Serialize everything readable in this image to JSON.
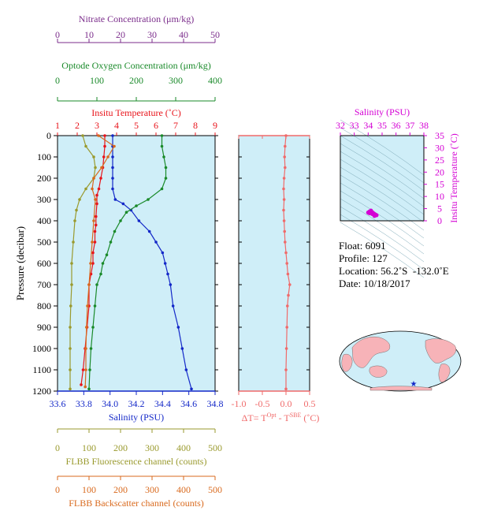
{
  "colors": {
    "nitrate": "#7b2d8b",
    "oxygen": "#1a8a2a",
    "temperature": "#e8141b",
    "salinity": "#1428c8",
    "fluorescence": "#9a9a2e",
    "backscatter": "#d96a1e",
    "delta": "#f06a6a",
    "ts_axis": "#d400d4",
    "plot_bg": "#cfeef8"
  },
  "chart_data": [
    {
      "type": "line",
      "panel": "main-profile",
      "ylabel": "Pressure (decibar)",
      "ylim": [
        1200,
        0
      ],
      "yticks": [
        0,
        100,
        200,
        300,
        400,
        500,
        600,
        700,
        800,
        900,
        1000,
        1100,
        1200
      ],
      "axes": {
        "nitrate": {
          "label": "Nitrate Concentration (μm/kg)",
          "lim": [
            0,
            50
          ],
          "ticks": [
            0,
            10,
            20,
            30,
            40,
            50
          ]
        },
        "oxygen": {
          "label": "Optode Oxygen Concentration (μm/kg)",
          "lim": [
            0,
            400
          ],
          "ticks": [
            0,
            100,
            200,
            300,
            400
          ]
        },
        "temperature": {
          "label": "Insitu Temperature (˚C)",
          "lim": [
            1,
            9
          ],
          "ticks": [
            1,
            2,
            3,
            4,
            5,
            6,
            7,
            8,
            9
          ]
        },
        "salinity": {
          "label": "Salinity (PSU)",
          "lim": [
            33.6,
            34.8
          ],
          "ticks": [
            "33.6",
            "33.8",
            "34.0",
            "34.2",
            "34.4",
            "34.6",
            "34.8"
          ]
        },
        "fluorescence": {
          "label": "FLBB Fluorescence channel (counts)",
          "lim": [
            0,
            500
          ],
          "ticks": [
            0,
            100,
            200,
            300,
            400,
            500
          ]
        },
        "backscatter": {
          "label": "FLBB Backscatter channel (counts)",
          "lim": [
            0,
            500
          ],
          "ticks": [
            0,
            100,
            200,
            300,
            400,
            500
          ]
        }
      },
      "series": [
        {
          "variable": "temperature",
          "points": [
            [
              3.4,
              0
            ],
            [
              3.4,
              50
            ],
            [
              3.35,
              100
            ],
            [
              3.3,
              150
            ],
            [
              3.2,
              200
            ],
            [
              3.1,
              250
            ],
            [
              3.0,
              280
            ],
            [
              3.0,
              320
            ],
            [
              2.95,
              380
            ],
            [
              2.95,
              420
            ],
            [
              2.9,
              450
            ],
            [
              2.9,
              500
            ],
            [
              2.8,
              550
            ],
            [
              2.8,
              600
            ],
            [
              2.7,
              650
            ],
            [
              2.6,
              700
            ],
            [
              2.6,
              800
            ],
            [
              2.5,
              900
            ],
            [
              2.4,
              1000
            ],
            [
              2.3,
              1100
            ],
            [
              2.2,
              1170
            ]
          ]
        },
        {
          "variable": "salinity",
          "points": [
            [
              34.02,
              0
            ],
            [
              34.02,
              50
            ],
            [
              34.02,
              100
            ],
            [
              34.02,
              150
            ],
            [
              34.02,
              200
            ],
            [
              34.02,
              250
            ],
            [
              34.04,
              300
            ],
            [
              34.1,
              320
            ],
            [
              34.16,
              350
            ],
            [
              34.22,
              400
            ],
            [
              34.3,
              450
            ],
            [
              34.35,
              500
            ],
            [
              34.4,
              550
            ],
            [
              34.42,
              600
            ],
            [
              34.44,
              650
            ],
            [
              34.46,
              700
            ],
            [
              34.48,
              800
            ],
            [
              34.52,
              900
            ],
            [
              34.55,
              1000
            ],
            [
              34.58,
              1100
            ],
            [
              34.62,
              1190
            ]
          ]
        },
        {
          "variable": "oxygen",
          "points": [
            [
              265,
              0
            ],
            [
              265,
              50
            ],
            [
              270,
              100
            ],
            [
              275,
              150
            ],
            [
              275,
              200
            ],
            [
              265,
              250
            ],
            [
              230,
              300
            ],
            [
              200,
              330
            ],
            [
              175,
              360
            ],
            [
              160,
              400
            ],
            [
              145,
              450
            ],
            [
              135,
              500
            ],
            [
              125,
              560
            ],
            [
              115,
              600
            ],
            [
              110,
              650
            ],
            [
              100,
              700
            ],
            [
              95,
              800
            ],
            [
              90,
              900
            ],
            [
              85,
              1000
            ],
            [
              82,
              1100
            ],
            [
              80,
              1190
            ]
          ]
        },
        {
          "variable": "fluorescence",
          "points": [
            [
              80,
              0
            ],
            [
              90,
              50
            ],
            [
              115,
              100
            ],
            [
              120,
              150
            ],
            [
              115,
              200
            ],
            [
              90,
              250
            ],
            [
              70,
              300
            ],
            [
              60,
              350
            ],
            [
              55,
              400
            ],
            [
              50,
              500
            ],
            [
              45,
              600
            ],
            [
              45,
              700
            ],
            [
              42,
              800
            ],
            [
              40,
              900
            ],
            [
              40,
              1000
            ],
            [
              40,
              1100
            ],
            [
              40,
              1190
            ]
          ]
        },
        {
          "variable": "backscatter",
          "points": [
            [
              130,
              0
            ],
            [
              180,
              50
            ],
            [
              160,
              100
            ],
            [
              140,
              150
            ],
            [
              115,
              200
            ],
            [
              110,
              250
            ],
            [
              120,
              300
            ],
            [
              115,
              400
            ],
            [
              110,
              500
            ],
            [
              105,
              600
            ],
            [
              100,
              700
            ],
            [
              95,
              800
            ],
            [
              92,
              900
            ],
            [
              90,
              1000
            ],
            [
              90,
              1100
            ],
            [
              88,
              1180
            ]
          ]
        }
      ]
    },
    {
      "type": "line",
      "panel": "delta-temperature",
      "xlabel": "ΔT= T",
      "xlabel_sup1": "Opt",
      "xlabel_mid": " - T",
      "xlabel_sup2": "SBE",
      "xlabel_end": " (˚C)",
      "xlim": [
        -1.0,
        0.5
      ],
      "xticks": [
        "-1.0",
        "-0.5",
        "0.0",
        "0.5"
      ],
      "ylim": [
        1200,
        0
      ],
      "points": [
        [
          0.0,
          0
        ],
        [
          -0.02,
          50
        ],
        [
          -0.03,
          100
        ],
        [
          -0.02,
          150
        ],
        [
          -0.04,
          200
        ],
        [
          -0.05,
          250
        ],
        [
          -0.04,
          300
        ],
        [
          -0.05,
          350
        ],
        [
          -0.04,
          400
        ],
        [
          -0.03,
          450
        ],
        [
          -0.02,
          500
        ],
        [
          0.0,
          550
        ],
        [
          0.02,
          600
        ],
        [
          0.04,
          650
        ],
        [
          0.08,
          700
        ],
        [
          0.05,
          750
        ],
        [
          0.03,
          800
        ],
        [
          0.02,
          900
        ],
        [
          0.01,
          1000
        ],
        [
          0.0,
          1100
        ],
        [
          0.0,
          1190
        ]
      ]
    },
    {
      "type": "scatter",
      "panel": "ts-diagram",
      "title": "Salinity (PSU)",
      "ylabel": "Insitu Temperature (˚C)",
      "xlim": [
        32,
        38
      ],
      "xticks": [
        32,
        33,
        34,
        35,
        36,
        37,
        38
      ],
      "ylim": [
        0,
        35
      ],
      "yticks": [
        0,
        5,
        10,
        15,
        20,
        25,
        30,
        35
      ],
      "points": [
        [
          34.0,
          3.4
        ],
        [
          34.1,
          3.8
        ],
        [
          34.2,
          4.2
        ],
        [
          34.3,
          3.5
        ],
        [
          34.4,
          3.0
        ],
        [
          34.5,
          2.6
        ],
        [
          34.6,
          2.3
        ],
        [
          34.3,
          2.8
        ],
        [
          34.1,
          3.1
        ],
        [
          34.45,
          2.0
        ]
      ]
    }
  ],
  "info": {
    "float_label": "Float:",
    "float_value": "6091",
    "profile_label": "Profile:",
    "profile_value": "127",
    "location_label": "Location:",
    "location_value": "56.2˚S  -132.0˚E",
    "date_label": "Date:",
    "date_value": "10/18/2017"
  },
  "map": {
    "marker_lon": -132.0,
    "marker_lat": -56.2
  }
}
